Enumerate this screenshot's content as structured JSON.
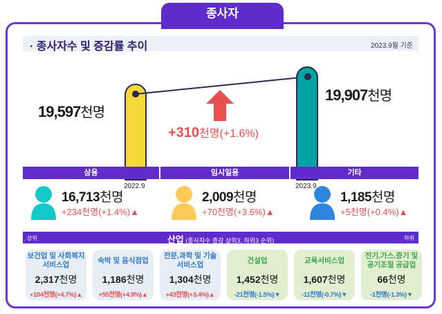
{
  "tab": "종사자",
  "section": {
    "title": "· 종사자수 및 증감률 추이",
    "basis": "2023.9월 기준"
  },
  "trend": {
    "prev": {
      "value": "19,597",
      "unit": "천명",
      "label": "2022.9",
      "color": "#f5d93a"
    },
    "curr": {
      "value": "19,907",
      "unit": "천명",
      "label": "2023.9",
      "color": "#00a3a3"
    },
    "change": {
      "value": "+310",
      "unit": "천명",
      "pct": "(+1.6%)",
      "direction": "up",
      "color": "#e84f4f"
    }
  },
  "categories": [
    {
      "label": "상용",
      "value": "16,713",
      "unit": "천명",
      "change": "+234천명(+1.4%)",
      "icon": "person-icon",
      "color": "#13c9c9"
    },
    {
      "label": "임시일용",
      "value": "2,009",
      "unit": "천명",
      "change": "+70천명(+3.6%)",
      "icon": "person-icon",
      "color": "#fbc957"
    },
    {
      "label": "기타",
      "value": "1,185",
      "unit": "천명",
      "change": "+5천명(+0.4%)",
      "icon": "person-icon",
      "color": "#2f86df"
    }
  ],
  "industry": {
    "left": "상위",
    "title": "산업",
    "subtitle": "(종사자수 증감 상위3, 하위3 순위)",
    "right": "하위",
    "items": [
      {
        "name": "보건업 및 사회복지 서비스업",
        "value": "2,317",
        "unit": "천명",
        "change": "+104천명(+4.7%)",
        "dir": "up"
      },
      {
        "name": "숙박 및 음식점업",
        "value": "1,186",
        "unit": "천명",
        "change": "+55천명(+4.9%)",
        "dir": "up"
      },
      {
        "name": "전문,과학 및 기술 서비스업",
        "value": "1,304",
        "unit": "천명",
        "change": "+43천명(+3.4%)",
        "dir": "up"
      },
      {
        "name": "건설업",
        "value": "1,452",
        "unit": "천명",
        "change": "-21천명(-1.5%)",
        "dir": "down"
      },
      {
        "name": "교육서비스업",
        "value": "1,607",
        "unit": "천명",
        "change": "-11천명(-0.7%)",
        "dir": "down"
      },
      {
        "name": "전기,가스,증기 및 공기조절 공급업",
        "value": "66",
        "unit": "천명",
        "change": "-1천명(-1.3%)",
        "dir": "down"
      }
    ]
  },
  "arrows": {
    "up": "▲",
    "down": "▼"
  }
}
